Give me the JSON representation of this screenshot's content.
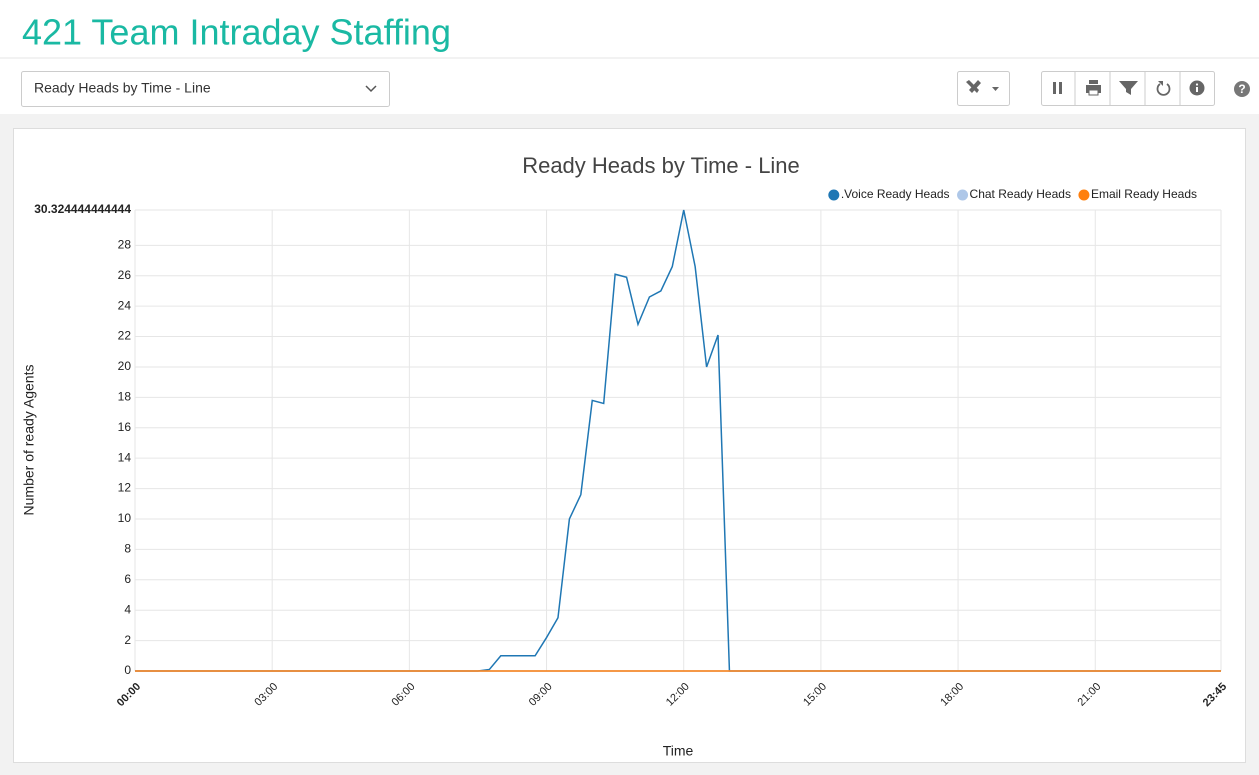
{
  "header": {
    "title": "421 Team Intraday Staffing"
  },
  "toolbar": {
    "report_select": "Ready Heads by Time - Line",
    "help_label": "?"
  },
  "chart_data": {
    "type": "line",
    "title": "Ready Heads by Time - Line",
    "xlabel": "Time",
    "ylabel": "Number of ready Agents",
    "x": [
      0,
      7.5,
      7.75,
      8,
      8.25,
      8.5,
      8.75,
      9,
      9.25,
      9.5,
      9.75,
      10,
      10.25,
      10.5,
      10.75,
      11,
      11.25,
      11.5,
      11.75,
      12,
      12.25,
      12.5,
      12.75,
      13,
      23.75
    ],
    "series": [
      {
        "name": ".Voice Ready Heads",
        "color": "#1f77b4",
        "values": [
          0,
          0,
          0.1,
          1,
          1,
          1,
          1,
          2.2,
          3.5,
          10,
          11.6,
          17.8,
          17.6,
          26.1,
          25.9,
          22.8,
          24.6,
          25,
          26.6,
          30.324444444444,
          26.6,
          20,
          22.1,
          0,
          0
        ]
      },
      {
        "name": "Chat Ready Heads",
        "color": "#aec7e8",
        "values": [
          0,
          0,
          0,
          0,
          0,
          0,
          0,
          0,
          0,
          0,
          0,
          0,
          0,
          0,
          0,
          0,
          0,
          0,
          0,
          0,
          0,
          0,
          0,
          0,
          0
        ]
      },
      {
        "name": "Email Ready Heads",
        "color": "#ff7f0e",
        "values": [
          0,
          0,
          0,
          0,
          0,
          0,
          0,
          0,
          0,
          0,
          0,
          0,
          0,
          0,
          0,
          0,
          0,
          0,
          0,
          0,
          0,
          0,
          0,
          0,
          0
        ]
      }
    ],
    "xlim": [
      0,
      23.75
    ],
    "xticks": [
      {
        "value": 0,
        "label": "00:00"
      },
      {
        "value": 3,
        "label": "03:00"
      },
      {
        "value": 6,
        "label": "06:00"
      },
      {
        "value": 9,
        "label": "09:00"
      },
      {
        "value": 12,
        "label": "12:00"
      },
      {
        "value": 15,
        "label": "15:00"
      },
      {
        "value": 18,
        "label": "18:00"
      },
      {
        "value": 21,
        "label": "21:00"
      },
      {
        "value": 23.75,
        "label": "23:45"
      }
    ],
    "ylim": [
      0,
      30.324444444444
    ],
    "yticks": [
      0,
      2,
      4,
      6,
      8,
      10,
      12,
      14,
      16,
      18,
      20,
      22,
      24,
      26,
      28,
      30.324444444444
    ],
    "grid": true,
    "legend": "top-right"
  }
}
